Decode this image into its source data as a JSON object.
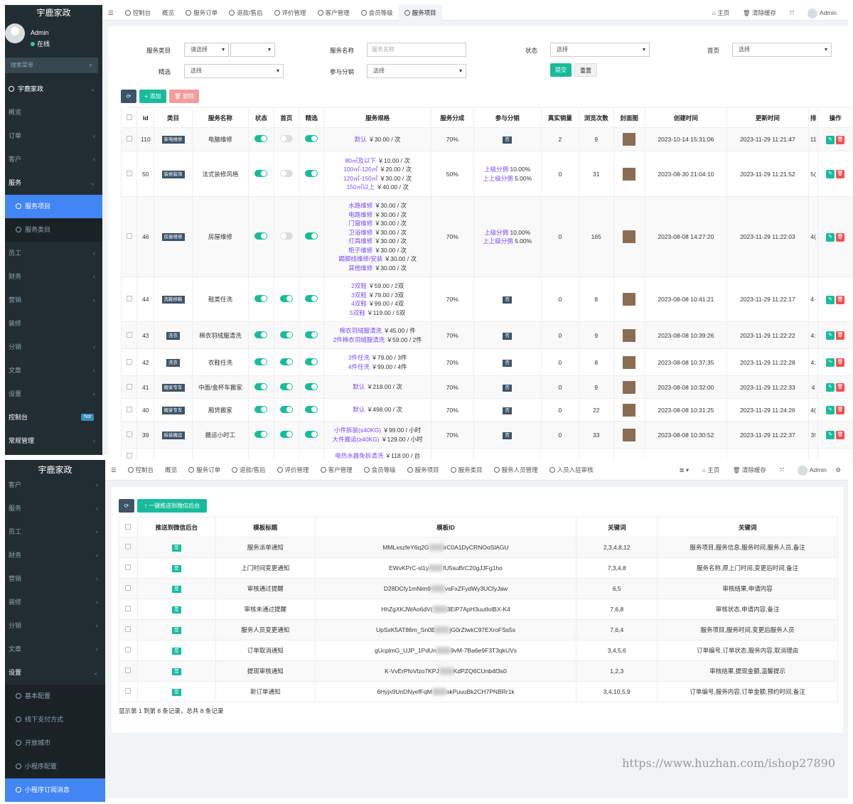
{
  "colors": {
    "sidebar": "#222d32",
    "accent": "#4285f4",
    "green": "#18bc9c",
    "tag": "#3c5468",
    "danger": "#f05050",
    "spec_key": "#7b4cf5"
  },
  "s1": {
    "brand": "宇鹿家政",
    "user": {
      "name": "Admin",
      "status": "在线"
    },
    "search_placeholder": "搜索菜单",
    "menu": [
      {
        "label": "宇鹿家政",
        "type": "hdr",
        "arrow": "⌄"
      },
      {
        "label": "概览",
        "type": "item",
        "arrow": ""
      },
      {
        "label": "订单",
        "type": "item",
        "arrow": "‹"
      },
      {
        "label": "客户",
        "type": "item",
        "arrow": "‹"
      },
      {
        "label": "服务",
        "type": "hdr2",
        "arrow": "⌄"
      },
      {
        "label": "服务项目",
        "type": "subactive",
        "arrow": ""
      },
      {
        "label": "服务类目",
        "type": "sub",
        "arrow": ""
      },
      {
        "label": "员工",
        "type": "item",
        "arrow": "‹"
      },
      {
        "label": "财务",
        "type": "item",
        "arrow": "‹"
      },
      {
        "label": "营销",
        "type": "item",
        "arrow": "‹"
      },
      {
        "label": "装修",
        "type": "item",
        "arrow": ""
      },
      {
        "label": "分销",
        "type": "item",
        "arrow": "‹"
      },
      {
        "label": "文章",
        "type": "item",
        "arrow": "‹"
      },
      {
        "label": "设置",
        "type": "item",
        "arrow": "‹"
      },
      {
        "label": "控制台",
        "type": "hot",
        "arrow": "",
        "badge": "hot"
      },
      {
        "label": "常规管理",
        "type": "hdr3",
        "arrow": "‹"
      }
    ],
    "tabs": [
      "☰",
      "控制台",
      "概览",
      "服务订单",
      "退款/售后",
      "评价管理",
      "客户管理",
      "会员等级",
      "服务项目"
    ],
    "active_tab": "服务项目",
    "right": {
      "home": "主页",
      "clear": "清除缓存",
      "expand": "⤧",
      "admin": "Admin"
    },
    "filters": {
      "category_label": "服务类目",
      "category_value": "请选择",
      "name_label": "服务名称",
      "name_placeholder": "服务名称",
      "status_label": "状态",
      "status_value": "选择",
      "home_label": "首页",
      "home_value": "选择",
      "featured_label": "精选",
      "featured_value": "选择",
      "dist_label": "参与分销",
      "dist_value": "选择",
      "submit": "提交",
      "reset": "重置"
    },
    "toolbar": {
      "refresh": "⟳",
      "add": "+ 添加",
      "delete": "🗑 删除"
    },
    "columns": [
      "",
      "Id",
      "类目",
      "服务名称",
      "状态",
      "首页",
      "精选",
      "服务规格",
      "服务分成",
      "参与分销",
      "真实销量",
      "浏览次数",
      "封面图",
      "创建时间",
      "更新时间",
      "排",
      "操作"
    ],
    "rows": [
      {
        "id": "110",
        "cat": "家电维修",
        "name": "电脑维修",
        "status": true,
        "home": false,
        "featured": true,
        "spec": [
          [
            "默认",
            "￥30.00 / 次"
          ]
        ],
        "share": "70%",
        "dist": [],
        "distno": "否",
        "sales": "2",
        "views": "9",
        "ctime": "2023-10-14 15:31:06",
        "utime": "2023-11-29 11:21:47",
        "sort": "11",
        "h": 33
      },
      {
        "id": "50",
        "cat": "装修装饰",
        "name": "法式装修风格",
        "status": true,
        "home": false,
        "featured": true,
        "spec": [
          [
            "80㎡及以下",
            "￥10.00 / 次"
          ],
          [
            "100㎡-120㎡",
            "￥20.00 / 次"
          ],
          [
            "120㎡-150㎡",
            "￥30.00 / 次"
          ],
          [
            "150㎡以上",
            "￥40.00 / 次"
          ]
        ],
        "share": "50%",
        "dist": [
          [
            "上级分佣",
            "10.00%"
          ],
          [
            "上上级分佣",
            "5.00%"
          ]
        ],
        "distno": "",
        "sales": "0",
        "views": "31",
        "ctime": "2023-08-30 21:04:10",
        "utime": "2023-11-29 11:21:52",
        "sort": "5(",
        "h": 64
      },
      {
        "id": "46",
        "cat": "房屋维修",
        "name": "房屋维修",
        "status": true,
        "home": false,
        "featured": true,
        "spec": [
          [
            "水路维修",
            "￥30.00 / 次"
          ],
          [
            "电路维修",
            "￥30.00 / 次"
          ],
          [
            "门窗维修",
            "￥30.00 / 次"
          ],
          [
            "卫浴维修",
            "￥30.00 / 次"
          ],
          [
            "灯具维修",
            "￥30.00 / 次"
          ],
          [
            "柜子维修",
            "￥30.00 / 次"
          ],
          [
            "踢脚线维修/安装",
            "￥30.00 / 次"
          ],
          [
            "其他维修",
            "￥30.00 / 次"
          ]
        ],
        "share": "70%",
        "dist": [
          [
            "上级分佣",
            "10.00%"
          ],
          [
            "上上级分佣",
            "5.00%"
          ]
        ],
        "distno": "",
        "sales": "0",
        "views": "165",
        "ctime": "2023-08-08 14:27:20",
        "utime": "2023-11-29 11:22:03",
        "sort": "4(",
        "h": 113
      },
      {
        "id": "44",
        "cat": "洗鞋修鞋",
        "name": "鞋类任洗",
        "status": true,
        "home": true,
        "featured": true,
        "spec": [
          [
            "2双鞋",
            "￥59.00 / 2双"
          ],
          [
            "3双鞋",
            "￥79.00 / 3双"
          ],
          [
            "4双鞋",
            "￥99.00 / 4双"
          ],
          [
            "5双鞋",
            "￥119.00 / 5双"
          ]
        ],
        "share": "70%",
        "dist": [],
        "distno": "否",
        "sales": "0",
        "views": "8",
        "ctime": "2023-08-08 10:41:21",
        "utime": "2023-11-29 11:22:17",
        "sort": "4·",
        "h": 63
      },
      {
        "id": "43",
        "cat": "洗衣",
        "name": "棉衣羽绒服清洗",
        "status": true,
        "home": true,
        "featured": true,
        "spec": [
          [
            "棉衣羽绒服清洗",
            "￥45.00 / 件"
          ],
          [
            "2件棉衣羽绒服清洗",
            "￥59.00 / 2件"
          ]
        ],
        "share": "70%",
        "dist": [],
        "distno": "否",
        "sales": "0",
        "views": "9",
        "ctime": "2023-08-08 10:39:26",
        "utime": "2023-11-29 11:22:22",
        "sort": "4:",
        "h": 38
      },
      {
        "id": "42",
        "cat": "洗衣",
        "name": "衣鞋任洗",
        "status": true,
        "home": true,
        "featured": true,
        "spec": [
          [
            "3件任洗",
            "￥79.00 / 3件"
          ],
          [
            "4件任洗",
            "￥99.00 / 4件"
          ]
        ],
        "share": "70%",
        "dist": [],
        "distno": "否",
        "sales": "0",
        "views": "8",
        "ctime": "2023-08-08 10:37:35",
        "utime": "2023-11-29 11:22:28",
        "sort": "4:",
        "h": 38
      },
      {
        "id": "41",
        "cat": "搬家专车",
        "name": "中面/金杯车搬家",
        "status": true,
        "home": true,
        "featured": true,
        "spec": [
          [
            "默认",
            "￥218.00 / 次"
          ]
        ],
        "share": "70%",
        "dist": [],
        "distno": "否",
        "sales": "0",
        "views": "9",
        "ctime": "2023-08-08 10:32:00",
        "utime": "2023-11-29 11:22:33",
        "sort": "4",
        "h": 32
      },
      {
        "id": "40",
        "cat": "搬家专车",
        "name": "厢货搬家",
        "status": true,
        "home": true,
        "featured": true,
        "spec": [
          [
            "默认",
            "￥498.00 / 次"
          ]
        ],
        "share": "70%",
        "dist": [],
        "distno": "否",
        "sales": "0",
        "views": "22",
        "ctime": "2023-08-08 10:31:25",
        "utime": "2023-11-29 11:24:26",
        "sort": "4(",
        "h": 32
      },
      {
        "id": "39",
        "cat": "拆装搬运",
        "name": "搬运小时工",
        "status": true,
        "home": true,
        "featured": true,
        "spec": [
          [
            "小件拆装(≤40KG)",
            "￥99.00 / 小时"
          ],
          [
            "大件搬运(≥40KG)",
            "￥129.00 / 小时"
          ]
        ],
        "share": "70%",
        "dist": [],
        "distno": "否",
        "sales": "0",
        "views": "33",
        "ctime": "2023-08-08 10:30:52",
        "utime": "2023-11-29 11:22:37",
        "sort": "3!",
        "h": 38
      },
      {
        "id": "",
        "cat": "",
        "name": "",
        "status": null,
        "home": null,
        "featured": null,
        "spec": [
          [
            "电热水器免拆清洗",
            "￥118.00 / 台"
          ]
        ],
        "share": "",
        "dist": [],
        "distno": "",
        "sales": "",
        "views": "",
        "ctime": "",
        "utime": "",
        "sort": "",
        "h": 22
      }
    ]
  },
  "s2": {
    "brand": "宇鹿家政",
    "menu": [
      {
        "label": "客户",
        "type": "item",
        "arrow": "‹"
      },
      {
        "label": "服务",
        "type": "item",
        "arrow": "‹"
      },
      {
        "label": "员工",
        "type": "item",
        "arrow": "‹"
      },
      {
        "label": "财务",
        "type": "item",
        "arrow": "‹"
      },
      {
        "label": "营销",
        "type": "item",
        "arrow": "‹"
      },
      {
        "label": "装修",
        "type": "item",
        "arrow": "‹"
      },
      {
        "label": "分销",
        "type": "item",
        "arrow": "‹"
      },
      {
        "label": "文章",
        "type": "item",
        "arrow": "‹"
      },
      {
        "label": "设置",
        "type": "hdr2",
        "arrow": "⌄"
      },
      {
        "label": "基本配置",
        "type": "sub",
        "arrow": ""
      },
      {
        "label": "线下支付方式",
        "type": "sub",
        "arrow": ""
      },
      {
        "label": "开放城市",
        "type": "sub",
        "arrow": ""
      },
      {
        "label": "小程序配置",
        "type": "sub",
        "arrow": ""
      },
      {
        "label": "小程序订阅消息",
        "type": "subactive",
        "arrow": ""
      }
    ],
    "tabs": [
      "☰",
      "控制台",
      "概览",
      "服务订单",
      "退款/售后",
      "评价管理",
      "客户管理",
      "会员等级",
      "服务项目",
      "服务类目",
      "服务人员管理",
      "人员入驻审核"
    ],
    "right": {
      "menu": "≣ ▾",
      "home": "主页",
      "clear": "清除缓存",
      "expand": "⤧",
      "admin": "Admin",
      "gear": "⚙"
    },
    "toolbar": {
      "refresh": "⟳",
      "push": "↑ 一键推送到微信后台"
    },
    "columns": [
      "",
      "推送到微信后台",
      "模板标题",
      "模板ID",
      "关键词",
      "关键词"
    ],
    "rows": [
      {
        "push": "是",
        "title": "服务派单通知",
        "id_a": "MMLxszfeY6q2G",
        "id_b": "irC0A1DyCRNOoSlAGU",
        "kw": "2,3,4,8,12",
        "kwn": "服务项目,服务信息,服务时间,服务人员,备注"
      },
      {
        "push": "是",
        "title": "上门时间变更通知",
        "id_a": "EWvKPrC-sl1y",
        "id_b": "fU5suBrC20gJJFg1ho",
        "kw": "7,3,4,8",
        "kwn": "服务名称,原上门时间,变更后时间,备注"
      },
      {
        "push": "是",
        "title": "审核通过提醒",
        "id_a": "D28DCfy1mNim9",
        "id_b": "vsFxZFydWy3UCfyJaw",
        "kw": "6,5",
        "kwn": "审核结果,申请内容"
      },
      {
        "push": "是",
        "title": "审核未通过提醒",
        "id_a": "HhZgXKJWAo6dV(",
        "id_b": "3EiP7ApH3uutIolBX-K4",
        "kw": "7,6,8",
        "kwn": "审核状态,申请内容,备注"
      },
      {
        "push": "是",
        "title": "服务人员变更通知",
        "id_a": "UpSxK5AT86m_Sn0E",
        "id_b": "jG0rZIwkC97EXroFSs5s",
        "kw": "7,6,4",
        "kwn": "服务项目,服务时间,变更后服务人员"
      },
      {
        "push": "是",
        "title": "订单取消通知",
        "id_a": "gUcplmG_UJP_1PdUn",
        "id_b": "9vM-7Ba6e9F3T3qkUVs",
        "kw": "3,4,5,6",
        "kwn": "订单编号,订单状态,服务内容,取消理由"
      },
      {
        "push": "是",
        "title": "提现审核通知",
        "id_a": "K-VvErPfoVlzo7KPJ",
        "id_b": "KdPZQ6CUnb4f3s0",
        "kw": "1,2,3",
        "kwn": "审核结果,提现金额,温馨提示"
      },
      {
        "push": "是",
        "title": "新订单通知",
        "id_a": "6Hyjx9UnDNyefFqM",
        "id_b": "okPuuuBk2CH7PNBRr1k",
        "kw": "3,4,10,5,9",
        "kwn": "订单编号,服务内容,订单金额,预约时间,备注"
      }
    ],
    "footer": "显示第 1 到第 8 条记录，总共 8 条记录"
  },
  "watermark": "https://www.huzhan.com/ishop27890"
}
